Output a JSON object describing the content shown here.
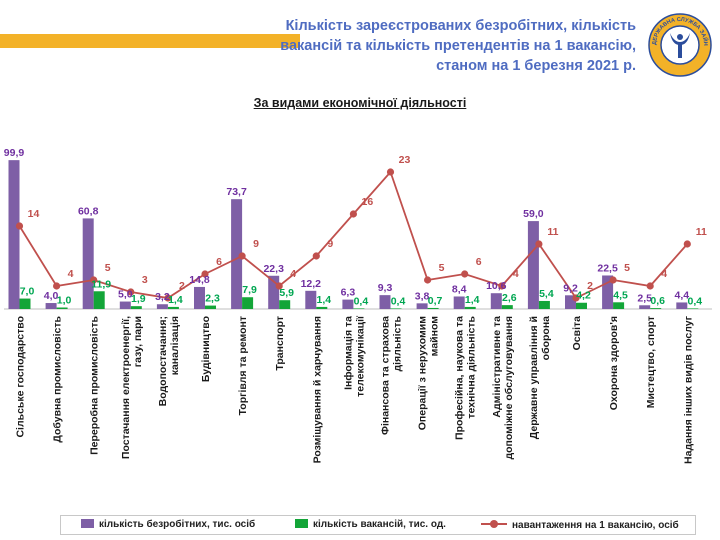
{
  "header": {
    "title_lines": [
      "Кількість зареєстрованих безробітних, кількість",
      "вакансій та кількість претендентів на 1 вакансію,",
      "станом на 1 березня 2021 р."
    ],
    "subtitle": "За видами економічної діяльності",
    "logo_text": "ДЕРЖАВНА СЛУЖБА ЗАЙНЯТОСТІ"
  },
  "colors": {
    "accent_band": "#f3b228",
    "title": "#4f6cc1",
    "unemployed": "#7e5fa6",
    "vacancies": "#13a538",
    "load": "#c0504d"
  },
  "chart_data": {
    "type": "bar",
    "categories": [
      "Сільське господарство",
      "Добувна промисловість",
      "Переробна промисловість",
      "Постачання електроенергії, газу, пари",
      "Водопостачання; каналізація",
      "Будівництво",
      "Торгівля та ремонт",
      "Транспорт",
      "Розміщування й харчування",
      "Інформація та телекомунікації",
      "Фінансова та страхова діяльність",
      "Операції з нерухомим майном",
      "Професійна, наукова та технічна діяльність",
      "Адміністративне та допоміжне обслуговування",
      "Державне управління й оборона",
      "Освіта",
      "Охорона здоров'я",
      "Мистецтво, спорт",
      "Надання інших видів послуг"
    ],
    "series": [
      {
        "name": "кількість безробітних, тис. осіб",
        "type": "bar",
        "values": [
          99.9,
          4.0,
          60.8,
          5.0,
          3.2,
          14.8,
          73.7,
          22.3,
          12.2,
          6.3,
          9.3,
          3.8,
          8.4,
          10.6,
          59.0,
          9.2,
          22.5,
          2.5,
          4.4
        ],
        "labels": [
          "99,9",
          "4,0",
          "60,8",
          "5,0",
          "3,2",
          "14,8",
          "73,7",
          "22,3",
          "12,2",
          "6,3",
          "9,3",
          "3,8",
          "8,4",
          "10,6",
          "59,0",
          "9,2",
          "22,5",
          "2,5",
          "4,4"
        ]
      },
      {
        "name": "кількість вакансій, тис. од.",
        "type": "bar",
        "values": [
          7.0,
          1.0,
          11.9,
          1.9,
          1.4,
          2.3,
          7.9,
          5.9,
          1.4,
          0.4,
          0.4,
          0.7,
          1.4,
          2.6,
          5.4,
          4.2,
          4.5,
          0.6,
          0.4
        ],
        "labels": [
          "7,0",
          "1,0",
          "11,9",
          "1,9",
          "1,4",
          "2,3",
          "7,9",
          "5,9",
          "1,4",
          "0,4",
          "0,4",
          "0,7",
          "1,4",
          "2,6",
          "5,4",
          "4,2",
          "4,5",
          "0,6",
          "0,4"
        ]
      },
      {
        "name": "навантаження на 1 вакансію, осіб",
        "type": "line",
        "values": [
          14,
          4,
          5,
          3,
          2,
          6,
          9,
          4,
          9,
          16,
          23,
          5,
          6,
          4,
          11,
          2,
          5,
          4,
          11
        ],
        "labels": [
          "14",
          "4",
          "5",
          "3",
          "2",
          "6",
          "9",
          "4",
          "9",
          "16",
          "23",
          "5",
          "6",
          "4",
          "11",
          "2",
          "5",
          "4",
          "11"
        ]
      }
    ],
    "bar_ylim": [
      0,
      100
    ],
    "line_ylim": [
      -20,
      30
    ],
    "legend_position": "bottom"
  }
}
